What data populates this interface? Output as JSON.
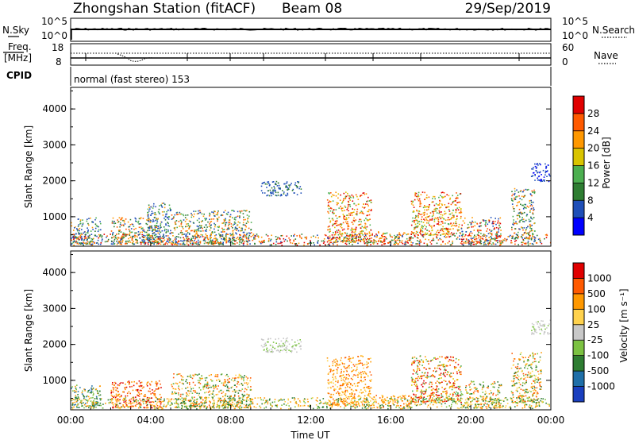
{
  "header": {
    "station": "Zhongshan Station (fitACF)",
    "beam": "Beam 08",
    "date": "29/Sep/2019"
  },
  "top_panels": {
    "nsky_label": "N.Sky",
    "nsky_ticks": [
      "10^5",
      "10^0"
    ],
    "nsearch_label": "N.Search",
    "nsearch_ticks": [
      "10^5",
      "10^0"
    ],
    "freq_label_1": "Freq.",
    "freq_label_2": "[MHz]",
    "freq_ticks": [
      "18",
      "8"
    ],
    "nave_label": "Nave",
    "nave_ticks": [
      "60",
      "0"
    ],
    "cpid_label": "CPID",
    "cpid_text": "normal (fast stereo) 153"
  },
  "chart_data": [
    {
      "type": "heatmap",
      "name": "power-panel",
      "ylabel": "Slant Range [km]",
      "ylim": [
        180,
        4600
      ],
      "yticks": [
        "1000",
        "2000",
        "3000",
        "4000"
      ],
      "xlim": [
        "00:00",
        "24:00"
      ],
      "colorbar": {
        "label": "Power [dB]",
        "ticks": [
          "4",
          "8",
          "12",
          "16",
          "20",
          "24",
          "28"
        ],
        "colors": [
          "#0000ff",
          "#1f4fb8",
          "#2e7d32",
          "#4caf50",
          "#d9c400",
          "#ff9800",
          "#ff5a00",
          "#e00000"
        ]
      },
      "echo_regions": [
        {
          "t": [
            0.0,
            1.5
          ],
          "r": [
            250,
            1000
          ],
          "level": "mixed-blue-green"
        },
        {
          "t": [
            2.0,
            4.5
          ],
          "r": [
            250,
            1000
          ],
          "level": "mixed-green-orange"
        },
        {
          "t": [
            3.8,
            5.0
          ],
          "r": [
            300,
            1400
          ],
          "level": "mixed-blue-green"
        },
        {
          "t": [
            5.0,
            9.0
          ],
          "r": [
            250,
            1200
          ],
          "level": "mixed-green-orange"
        },
        {
          "t": [
            9.5,
            11.5
          ],
          "r": [
            1600,
            2000
          ],
          "level": "blue-green"
        },
        {
          "t": [
            12.8,
            15.0
          ],
          "r": [
            300,
            1700
          ],
          "level": "orange-red"
        },
        {
          "t": [
            15.0,
            17.0
          ],
          "r": [
            250,
            600
          ],
          "level": "mixed-orange"
        },
        {
          "t": [
            17.0,
            19.5
          ],
          "r": [
            500,
            1700
          ],
          "level": "orange-red"
        },
        {
          "t": [
            19.5,
            21.5
          ],
          "r": [
            250,
            1000
          ],
          "level": "mixed-orange-red"
        },
        {
          "t": [
            22.0,
            23.2
          ],
          "r": [
            400,
            1800
          ],
          "level": "mixed-green-orange"
        },
        {
          "t": [
            23.0,
            24.0
          ],
          "r": [
            2000,
            2500
          ],
          "level": "blue"
        }
      ]
    },
    {
      "type": "heatmap",
      "name": "velocity-panel",
      "ylabel": "Slant Range [km]",
      "ylim": [
        180,
        4600
      ],
      "yticks": [
        "1000",
        "2000",
        "3000",
        "4000"
      ],
      "xlim": [
        "00:00",
        "24:00"
      ],
      "xticks": [
        "00:00",
        "04:00",
        "08:00",
        "12:00",
        "16:00",
        "20:00",
        "00:00"
      ],
      "xlabel": "Time UT",
      "colorbar": {
        "label": "Velocity [m s⁻¹]",
        "ticks": [
          "1000",
          "500",
          "100",
          "25",
          "-25",
          "-100",
          "-500",
          "-1000"
        ],
        "colors": [
          "#1a3fbf",
          "#1f6fa8",
          "#2e7d32",
          "#7cc242",
          "#c8c8c8",
          "#ffd24d",
          "#ff9800",
          "#ff5a00",
          "#e00000"
        ]
      },
      "echo_regions": [
        {
          "t": [
            0.0,
            1.5
          ],
          "r": [
            250,
            900
          ],
          "level": "mixed-green-blue"
        },
        {
          "t": [
            2.0,
            4.5
          ],
          "r": [
            250,
            1000
          ],
          "level": "mixed-orange-red"
        },
        {
          "t": [
            5.0,
            9.0
          ],
          "r": [
            250,
            1200
          ],
          "level": "mixed-orange-green"
        },
        {
          "t": [
            9.5,
            11.5
          ],
          "r": [
            1800,
            2200
          ],
          "level": "gray"
        },
        {
          "t": [
            12.8,
            15.0
          ],
          "r": [
            300,
            1700
          ],
          "level": "orange"
        },
        {
          "t": [
            15.0,
            17.0
          ],
          "r": [
            250,
            600
          ],
          "level": "orange"
        },
        {
          "t": [
            17.0,
            19.5
          ],
          "r": [
            400,
            1700
          ],
          "level": "orange-red"
        },
        {
          "t": [
            19.5,
            21.5
          ],
          "r": [
            250,
            1000
          ],
          "level": "mixed-orange-green"
        },
        {
          "t": [
            22.0,
            23.5
          ],
          "r": [
            400,
            1800
          ],
          "level": "mixed-orange-green"
        },
        {
          "t": [
            23.0,
            24.0
          ],
          "r": [
            2300,
            2700
          ],
          "level": "gray"
        }
      ]
    }
  ]
}
